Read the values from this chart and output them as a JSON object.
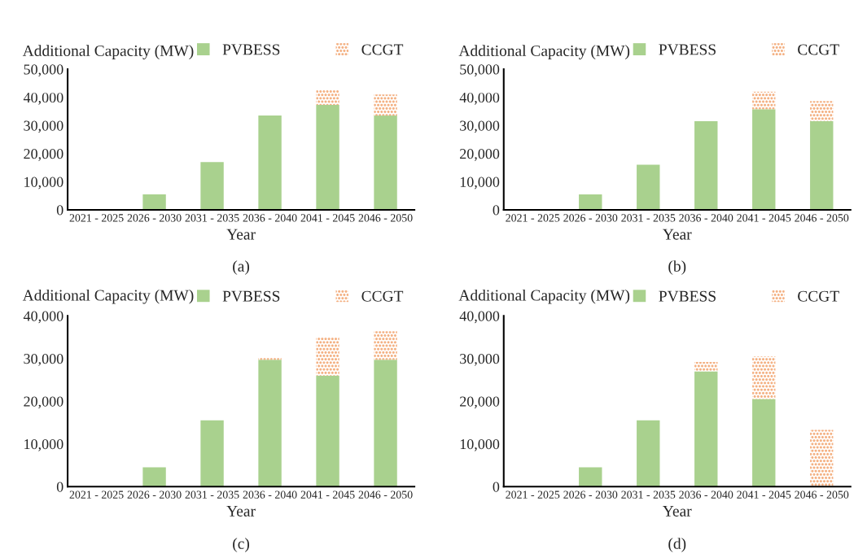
{
  "chart_data": [
    {
      "type": "bar",
      "stacked": true,
      "ylabel": "Additional Capacity (MW)",
      "xlabel": "Year",
      "legend": "top right",
      "grid": false,
      "categories": [
        "2021 - 2025",
        "2026 - 2030",
        "2031 - 2035",
        "2036 - 2040",
        "2041 - 2045",
        "2046 - 2050"
      ],
      "series": [
        {
          "name": "PVBESS",
          "color": "#a9d18e",
          "values": [
            0,
            5500,
            17000,
            33500,
            37300,
            33500
          ]
        },
        {
          "name": "CCGT",
          "color": "#f4b183",
          "values": [
            0,
            0,
            0,
            0,
            5400,
            7500
          ]
        }
      ],
      "ylim": [
        0,
        50000
      ],
      "yticks": [
        {
          "value": 0,
          "label": "0"
        },
        {
          "value": 10000,
          "label": "10,000"
        },
        {
          "value": 20000,
          "label": "20,000"
        },
        {
          "value": 30000,
          "label": "30,000"
        },
        {
          "value": 40000,
          "label": "40,000"
        },
        {
          "value": 50000,
          "label": "50,000"
        }
      ],
      "annotations": [
        "(a)"
      ]
    },
    {
      "type": "bar",
      "stacked": true,
      "ylabel": "Additional Capacity (MW)",
      "xlabel": "Year",
      "legend": "top right",
      "grid": false,
      "categories": [
        "2021 - 2025",
        "2026 - 2030",
        "2031 - 2035",
        "2036 - 2040",
        "2041 - 2045",
        "2046 - 2050"
      ],
      "series": [
        {
          "name": "PVBESS",
          "color": "#a9d18e",
          "values": [
            0,
            5500,
            16000,
            31500,
            35800,
            31500
          ]
        },
        {
          "name": "CCGT",
          "color": "#f4b183",
          "values": [
            0,
            0,
            0,
            0,
            6200,
            7200
          ]
        }
      ],
      "ylim": [
        0,
        50000
      ],
      "yticks": [
        {
          "value": 0,
          "label": "0"
        },
        {
          "value": 10000,
          "label": "10,000"
        },
        {
          "value": 20000,
          "label": "20,000"
        },
        {
          "value": 30000,
          "label": "30,000"
        },
        {
          "value": 40000,
          "label": "40,000"
        },
        {
          "value": 50000,
          "label": "50,000"
        }
      ],
      "annotations": [
        "(b)"
      ]
    },
    {
      "type": "bar",
      "stacked": true,
      "ylabel": "Additional Capacity (MW)",
      "xlabel": "Year",
      "legend": "top right",
      "grid": false,
      "categories": [
        "2021 - 2025",
        "2026 - 2030",
        "2031 - 2035",
        "2036 - 2040",
        "2041 - 2045",
        "2046 - 2050"
      ],
      "series": [
        {
          "name": "PVBESS",
          "color": "#a9d18e",
          "values": [
            0,
            4500,
            15500,
            29700,
            26000,
            29700
          ]
        },
        {
          "name": "CCGT",
          "color": "#f4b183",
          "values": [
            0,
            0,
            0,
            500,
            9000,
            6700
          ]
        }
      ],
      "ylim": [
        0,
        40000
      ],
      "yticks": [
        {
          "value": 0,
          "label": "0"
        },
        {
          "value": 10000,
          "label": "10,000"
        },
        {
          "value": 20000,
          "label": "20,000"
        },
        {
          "value": 30000,
          "label": "30,000"
        },
        {
          "value": 40000,
          "label": "40,000"
        }
      ],
      "annotations": [
        "(c)"
      ]
    },
    {
      "type": "bar",
      "stacked": true,
      "ylabel": "Additional Capacity (MW)",
      "xlabel": "Year",
      "legend": "top right",
      "grid": false,
      "categories": [
        "2021 - 2025",
        "2026 - 2030",
        "2031 - 2035",
        "2036 - 2040",
        "2041 - 2045",
        "2046 - 2050"
      ],
      "series": [
        {
          "name": "PVBESS",
          "color": "#a9d18e",
          "values": [
            0,
            4500,
            15500,
            27000,
            20500,
            0
          ]
        },
        {
          "name": "CCGT",
          "color": "#f4b183",
          "values": [
            0,
            0,
            0,
            2200,
            10000,
            13300
          ]
        }
      ],
      "ylim": [
        0,
        40000
      ],
      "yticks": [
        {
          "value": 0,
          "label": "0"
        },
        {
          "value": 10000,
          "label": "10,000"
        },
        {
          "value": 20000,
          "label": "20,000"
        },
        {
          "value": 30000,
          "label": "30,000"
        },
        {
          "value": 40000,
          "label": "40,000"
        }
      ],
      "annotations": [
        "(d)"
      ]
    }
  ]
}
